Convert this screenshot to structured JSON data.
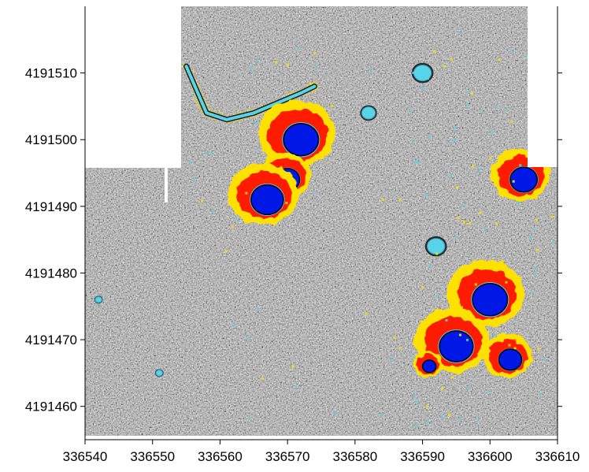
{
  "map": {
    "x_axis": {
      "ticks": [
        "336540",
        "336550",
        "336560",
        "336570",
        "336580",
        "336590",
        "336600",
        "336610"
      ],
      "range": [
        336540,
        336610
      ]
    },
    "y_axis": {
      "ticks": [
        "4191510",
        "4191500",
        "4191490",
        "4191480",
        "4191470",
        "4191460"
      ],
      "range": [
        4191455,
        4191520
      ]
    },
    "colors": {
      "background_gray": "#8c8c8c",
      "high_anomaly_red": "#ff1a00",
      "high_anomaly_yellow": "#ffe100",
      "low_anomaly_blue": "#0018e6",
      "low_anomaly_cyan": "#58d4e8",
      "no_data": "#ffffff"
    },
    "features": {
      "anomalies": [
        {
          "type": "dipole",
          "x": 336572,
          "y": 4191500,
          "r": 2.6
        },
        {
          "type": "dipole",
          "x": 336570,
          "y": 4191494,
          "r": 1.8
        },
        {
          "type": "dipole",
          "x": 336567,
          "y": 4191491,
          "r": 2.4
        },
        {
          "type": "dipole",
          "x": 336605,
          "y": 4191494,
          "r": 2.0
        },
        {
          "type": "dipole",
          "x": 336600,
          "y": 4191476,
          "r": 2.6
        },
        {
          "type": "dipole",
          "x": 336595,
          "y": 4191469,
          "r": 2.5
        },
        {
          "type": "dipole",
          "x": 336603,
          "y": 4191467,
          "r": 1.7
        },
        {
          "type": "dipole",
          "x": 336591,
          "y": 4191466,
          "r": 1.0
        },
        {
          "type": "negative",
          "x": 336590,
          "y": 4191510,
          "r": 1.3
        },
        {
          "type": "negative",
          "x": 336582,
          "y": 4191504,
          "r": 1.0
        },
        {
          "type": "negative",
          "x": 336592,
          "y": 4191484,
          "r": 1.3
        },
        {
          "type": "negative",
          "x": 336551,
          "y": 4191465,
          "r": 0.5
        },
        {
          "type": "negative",
          "x": 336542,
          "y": 4191476,
          "r": 0.5
        }
      ],
      "linear_feature": {
        "type": "negative-linear",
        "points": [
          [
            336555,
            4191511
          ],
          [
            336558,
            4191504
          ],
          [
            336561,
            4191503
          ],
          [
            336565,
            4191504
          ],
          [
            336572,
            4191507
          ],
          [
            336574,
            4191508
          ]
        ]
      }
    }
  }
}
